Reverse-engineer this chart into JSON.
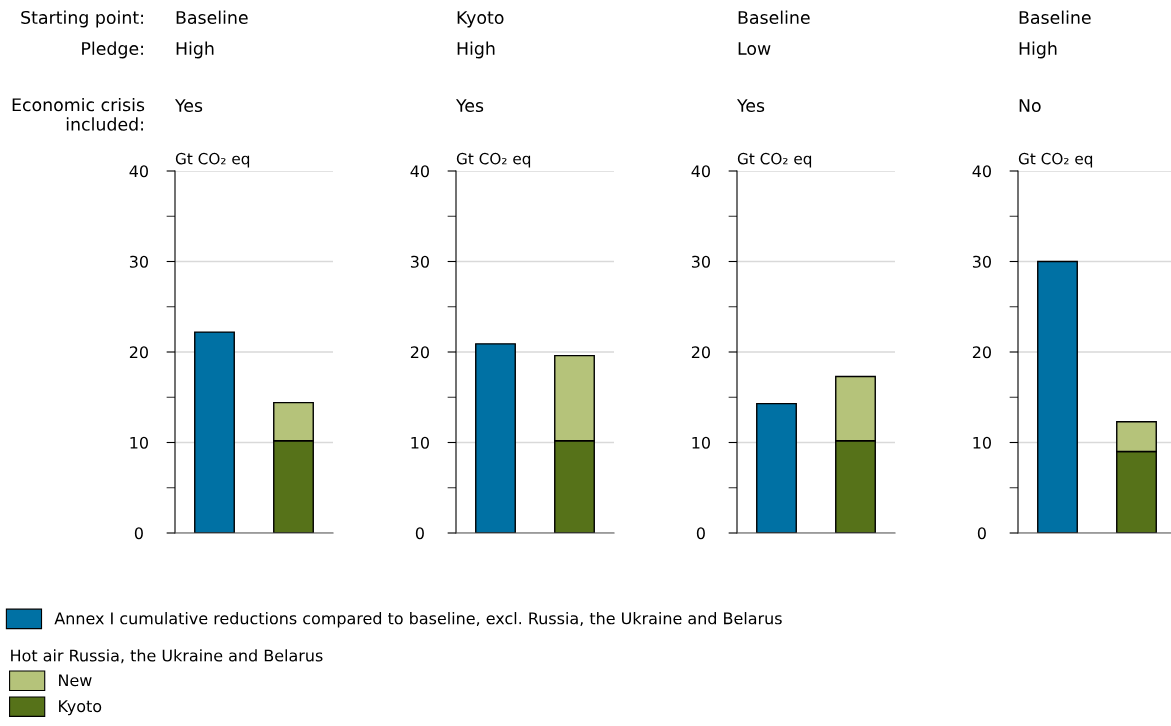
{
  "chart_data": [
    {
      "type": "bar",
      "stacked": true,
      "categories": [
        null,
        null
      ],
      "ylabel": "Gt CO₂ eq",
      "ylim": [
        0,
        40
      ],
      "yticks": [
        0,
        {
          "value": 5,
          "label": null
        },
        10,
        {
          "value": 15,
          "label": null
        },
        20,
        {
          "value": 25,
          "label": null
        },
        30,
        {
          "value": 35,
          "label": null
        },
        40
      ],
      "grid": "y",
      "legend": "bottom right",
      "legend_title": "Hot air Russia, the Ukraine and Belarus",
      "annotations": [
        "Starting point:",
        "Pledge:",
        "Economic crisis\nincluded:",
        "Baseline",
        "High",
        "Yes"
      ],
      "series": [
        {
          "name": "Annex I cumulative reductions compared to baseline, excl. Russia, the Ukraine and Belarus",
          "color": "#0071a4",
          "values": [
            22.2,
            null
          ]
        },
        {
          "name": "Kyoto",
          "color": "#567219",
          "values": [
            null,
            10.2
          ]
        },
        {
          "name": "New",
          "color": "#b5c37a",
          "values": [
            null,
            4.2
          ]
        }
      ]
    },
    {
      "type": "bar",
      "stacked": true,
      "categories": [
        null,
        null
      ],
      "ylabel": "Gt CO₂ eq",
      "ylim": [
        0,
        40
      ],
      "yticks": [
        0,
        {
          "value": 5,
          "label": null
        },
        10,
        {
          "value": 15,
          "label": null
        },
        20,
        {
          "value": 25,
          "label": null
        },
        30,
        {
          "value": 35,
          "label": null
        },
        40
      ],
      "grid": "y",
      "annotations": [
        "Kyoto",
        "High",
        "Yes"
      ],
      "series": [
        {
          "color": "#0071a4",
          "values": [
            20.9,
            null
          ]
        },
        {
          "color": "#567219",
          "values": [
            null,
            10.2
          ]
        },
        {
          "color": "#b5c37a",
          "values": [
            null,
            9.4
          ]
        }
      ]
    },
    {
      "type": "bar",
      "stacked": true,
      "categories": [
        null,
        null
      ],
      "ylabel": "Gt CO₂ eq",
      "ylim": [
        0,
        40
      ],
      "yticks": [
        0,
        {
          "value": 5,
          "label": null
        },
        10,
        {
          "value": 15,
          "label": null
        },
        20,
        {
          "value": 25,
          "label": null
        },
        30,
        {
          "value": 35,
          "label": null
        },
        40
      ],
      "grid": "y",
      "annotations": [
        "Baseline",
        "Low",
        "Yes"
      ],
      "series": [
        {
          "color": "#0071a4",
          "values": [
            14.3,
            null
          ]
        },
        {
          "color": "#567219",
          "values": [
            null,
            10.2
          ]
        },
        {
          "color": "#b5c37a",
          "values": [
            null,
            7.1
          ]
        }
      ]
    },
    {
      "type": "bar",
      "stacked": true,
      "categories": [
        null,
        null
      ],
      "ylabel": "Gt CO₂ eq",
      "ylim": [
        0,
        40
      ],
      "yticks": [
        0,
        {
          "value": 5,
          "label": null
        },
        10,
        {
          "value": 15,
          "label": null
        },
        20,
        {
          "value": 25,
          "label": null
        },
        30,
        {
          "value": 35,
          "label": null
        },
        40
      ],
      "grid": "y",
      "annotations": [
        "Baseline",
        "High",
        "No"
      ],
      "series": [
        {
          "color": "#0071a4",
          "values": [
            30.0,
            null
          ]
        },
        {
          "color": "#567219",
          "values": [
            null,
            9.0
          ]
        },
        {
          "color": "#b5c37a",
          "values": [
            null,
            3.3
          ]
        }
      ]
    }
  ]
}
